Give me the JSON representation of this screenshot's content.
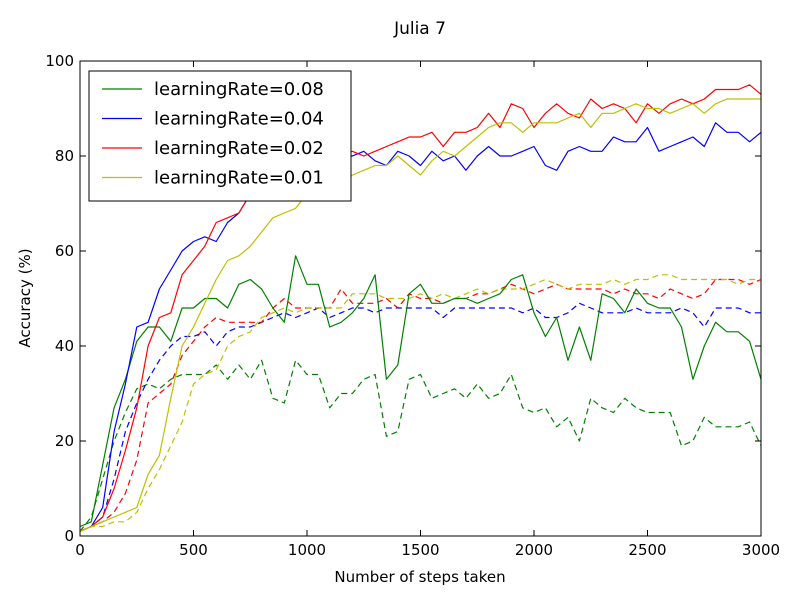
{
  "chart_data": {
    "type": "line",
    "title": "Julia 7",
    "xlabel": "Number of steps taken",
    "ylabel": "Accuracy (%)",
    "xlim": [
      0,
      3000
    ],
    "ylim": [
      0,
      100
    ],
    "xticks": [
      0,
      500,
      1000,
      1500,
      2000,
      2500,
      3000
    ],
    "yticks": [
      0,
      20,
      40,
      60,
      80,
      100
    ],
    "grid": false,
    "legend_position": "top-left",
    "x": [
      0,
      50,
      100,
      150,
      200,
      250,
      300,
      350,
      400,
      450,
      500,
      550,
      600,
      650,
      700,
      750,
      800,
      850,
      900,
      950,
      1000,
      1050,
      1100,
      1150,
      1200,
      1250,
      1300,
      1350,
      1400,
      1450,
      1500,
      1550,
      1600,
      1650,
      1700,
      1750,
      1800,
      1850,
      1900,
      1950,
      2000,
      2050,
      2100,
      2150,
      2200,
      2250,
      2300,
      2350,
      2400,
      2450,
      2500,
      2550,
      2600,
      2650,
      2700,
      2750,
      2800,
      2850,
      2900,
      2950,
      3000
    ],
    "series": [
      {
        "name": "learningRate=0.08",
        "color": "#008000",
        "style": "solid",
        "values": [
          2,
          3,
          15,
          27,
          33,
          41,
          44,
          44,
          41,
          48,
          48,
          50,
          50,
          48,
          53,
          54,
          52,
          48,
          45,
          59,
          53,
          53,
          44,
          45,
          47,
          50,
          55,
          33,
          36,
          51,
          53,
          49,
          49,
          50,
          50,
          49,
          50,
          51,
          54,
          55,
          47,
          42,
          46,
          37,
          44,
          37,
          51,
          50,
          47,
          52,
          49,
          48,
          48,
          44,
          33,
          40,
          45,
          43,
          43,
          41,
          33
        ]
      },
      {
        "name": "learningRate=0.04",
        "color": "#0000ff",
        "style": "solid",
        "values": [
          1,
          2,
          6,
          22,
          32,
          44,
          45,
          52,
          56,
          60,
          62,
          63,
          62,
          66,
          68,
          72,
          72,
          72,
          75,
          78,
          79,
          80,
          78,
          80,
          80,
          81,
          79,
          78,
          81,
          80,
          78,
          81,
          79,
          80,
          77,
          80,
          82,
          80,
          80,
          81,
          82,
          78,
          77,
          81,
          82,
          81,
          81,
          84,
          83,
          83,
          86,
          81,
          82,
          83,
          84,
          82,
          87,
          85,
          85,
          83,
          85
        ]
      },
      {
        "name": "learningRate=0.02",
        "color": "#ff0000",
        "style": "solid",
        "values": [
          1,
          2,
          4,
          10,
          18,
          27,
          40,
          46,
          47,
          55,
          58,
          61,
          66,
          67,
          68,
          72,
          74,
          75,
          75,
          77,
          77,
          78,
          79,
          80,
          81,
          80,
          81,
          82,
          83,
          84,
          84,
          85,
          82,
          85,
          85,
          86,
          89,
          86,
          91,
          90,
          86,
          89,
          91,
          89,
          88,
          92,
          90,
          91,
          90,
          87,
          91,
          89,
          91,
          92,
          91,
          92,
          94,
          94,
          94,
          95,
          93
        ]
      },
      {
        "name": "learningRate=0.01",
        "color": "#bfbf00",
        "style": "solid",
        "values": [
          1,
          2,
          3,
          4,
          5,
          6,
          13,
          17,
          29,
          40,
          44,
          49,
          54,
          58,
          59,
          61,
          64,
          67,
          68,
          69,
          72,
          72,
          71,
          74,
          76,
          77,
          78,
          78,
          80,
          78,
          76,
          79,
          81,
          80,
          82,
          84,
          86,
          87,
          87,
          85,
          87,
          87,
          87,
          88,
          89,
          86,
          89,
          89,
          90,
          91,
          90,
          90,
          89,
          90,
          91,
          89,
          91,
          92,
          92,
          92,
          92
        ]
      },
      {
        "name": "",
        "color": "#008000",
        "style": "dashed",
        "values": [
          1,
          4,
          12,
          20,
          26,
          31,
          32,
          31,
          33,
          34,
          34,
          34,
          36,
          33,
          36,
          33,
          37,
          29,
          28,
          37,
          34,
          34,
          27,
          30,
          30,
          33,
          34,
          21,
          22,
          33,
          34,
          29,
          30,
          31,
          29,
          32,
          29,
          30,
          34,
          27,
          26,
          27,
          23,
          25,
          20,
          29,
          27,
          26,
          29,
          27,
          26,
          26,
          26,
          19,
          20,
          25,
          23,
          23,
          23,
          24,
          19
        ]
      },
      {
        "name": "",
        "color": "#0000ff",
        "style": "dashed",
        "values": [
          1,
          2,
          4,
          12,
          22,
          28,
          33,
          37,
          40,
          42,
          42,
          43,
          40,
          43,
          44,
          44,
          45,
          46,
          47,
          46,
          47,
          48,
          46,
          47,
          48,
          48,
          47,
          48,
          48,
          48,
          48,
          48,
          46,
          48,
          48,
          48,
          48,
          48,
          48,
          47,
          48,
          46,
          46,
          47,
          49,
          48,
          47,
          47,
          47,
          48,
          47,
          47,
          47,
          48,
          47,
          44,
          48,
          48,
          48,
          47,
          47
        ]
      },
      {
        "name": "",
        "color": "#ff0000",
        "style": "dashed",
        "values": [
          1,
          2,
          3,
          5,
          9,
          16,
          28,
          30,
          32,
          38,
          41,
          44,
          46,
          45,
          45,
          45,
          45,
          48,
          50,
          48,
          48,
          48,
          48,
          52,
          49,
          49,
          49,
          50,
          48,
          51,
          50,
          50,
          49,
          50,
          50,
          51,
          51,
          52,
          53,
          52,
          51,
          52,
          53,
          52,
          52,
          52,
          52,
          51,
          52,
          51,
          51,
          50,
          52,
          51,
          50,
          51,
          54,
          54,
          54,
          53,
          54
        ]
      },
      {
        "name": "",
        "color": "#bfbf00",
        "style": "dashed",
        "values": [
          1,
          2,
          2,
          3,
          3,
          5,
          10,
          14,
          19,
          24,
          32,
          34,
          35,
          40,
          42,
          43,
          46,
          47,
          48,
          47,
          48,
          48,
          48,
          48,
          51,
          51,
          51,
          50,
          50,
          50,
          51,
          50,
          51,
          50,
          51,
          52,
          51,
          52,
          52,
          52,
          53,
          54,
          53,
          52,
          53,
          53,
          53,
          54,
          53,
          54,
          54,
          55,
          55,
          54,
          54,
          54,
          54,
          54,
          53,
          54,
          54
        ]
      }
    ]
  }
}
